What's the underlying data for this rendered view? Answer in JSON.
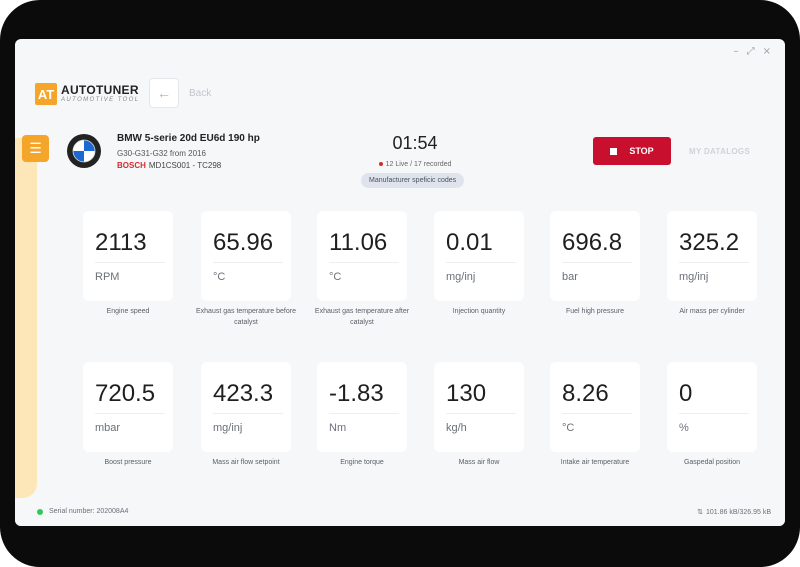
{
  "window": {
    "controls": [
      {
        "name": "minimize",
        "glyph": "–"
      },
      {
        "name": "maximize",
        "glyph": "⤢"
      },
      {
        "name": "close",
        "glyph": "×"
      }
    ]
  },
  "brand": {
    "badge": "AT",
    "name": "AUTOTUNER",
    "sub": "AUTOMOTIVE TOOL",
    "accent": "#f4a52a"
  },
  "nav": {
    "back_label": "Back",
    "back_icon": "arrow-left-icon",
    "menu_icon": "hamburger-menu-icon"
  },
  "vehicle": {
    "logo": "bmw-logo",
    "title": "BMW 5-serie 20d EU6d 190 hp",
    "models": "G30-G31-G32 from 2016",
    "ecu_brand": "BOSCH",
    "ecu": "MD1CS001 - TC298"
  },
  "session": {
    "timer": "01:54",
    "recorded": "12 Live / 17 recorded",
    "codes_button": "Manufacturer speficic codes",
    "stop_label": "STOP",
    "stop_color": "#c8102e",
    "datalogs_label": "MY DATALOGS"
  },
  "tiles": [
    {
      "value": "2113",
      "unit": "RPM",
      "label": "Engine speed"
    },
    {
      "value": "65.96",
      "unit": "°C",
      "label": "Exhaust gas temperature before catalyst"
    },
    {
      "value": "11.06",
      "unit": "°C",
      "label": "Exhaust gas temperature after catalyst"
    },
    {
      "value": "0.01",
      "unit": "mg/inj",
      "label": "Injection quantity"
    },
    {
      "value": "696.8",
      "unit": "bar",
      "label": "Fuel high pressure"
    },
    {
      "value": "325.2",
      "unit": "mg/inj",
      "label": "Air mass per cylinder"
    },
    {
      "value": "720.5",
      "unit": "mbar",
      "label": "Boost pressure"
    },
    {
      "value": "423.3",
      "unit": "mg/inj",
      "label": "Mass air flow setpoint"
    },
    {
      "value": "-1.83",
      "unit": "Nm",
      "label": "Engine torque"
    },
    {
      "value": "130",
      "unit": "kg/h",
      "label": "Mass air flow"
    },
    {
      "value": "8.26",
      "unit": "°C",
      "label": "Intake air temperature"
    },
    {
      "value": "0",
      "unit": "%",
      "label": "Gaspedal position"
    }
  ],
  "footer": {
    "serial": "Serial number: 202008A4",
    "transfer": "101.86 kB/326.95 kB",
    "status_color": "#34c759"
  }
}
